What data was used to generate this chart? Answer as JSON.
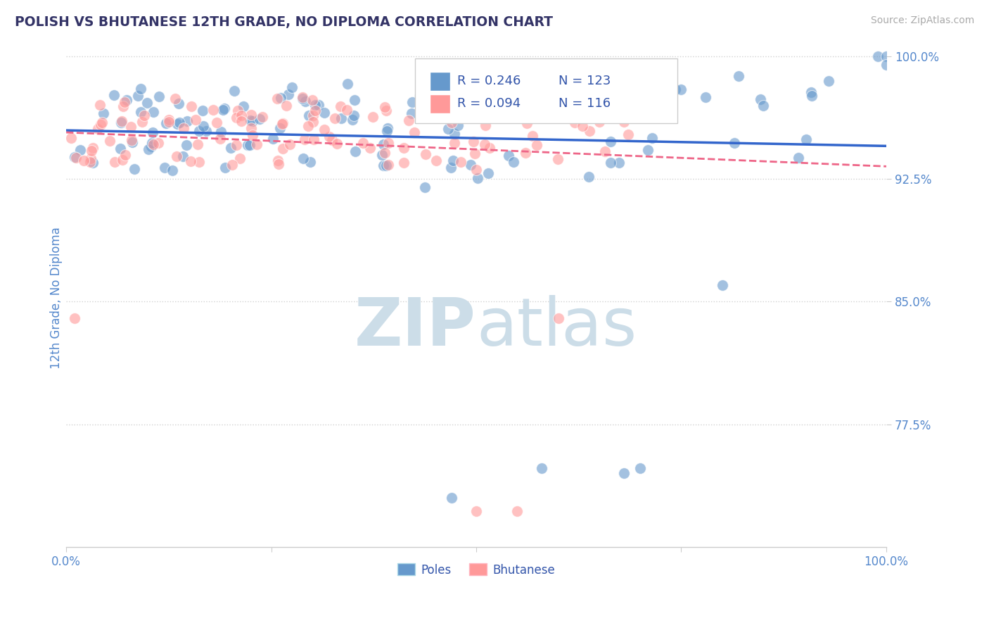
{
  "title": "POLISH VS BHUTANESE 12TH GRADE, NO DIPLOMA CORRELATION CHART",
  "source_text": "Source: ZipAtlas.com",
  "ylabel": "12th Grade, No Diploma",
  "xlim": [
    0.0,
    1.0
  ],
  "ylim": [
    0.7,
    1.005
  ],
  "yticks": [
    0.775,
    0.85,
    0.925,
    1.0
  ],
  "ytick_labels": [
    "77.5%",
    "85.0%",
    "92.5%",
    "100.0%"
  ],
  "blue_R": 0.246,
  "blue_N": 123,
  "pink_R": 0.094,
  "pink_N": 116,
  "blue_color": "#6699CC",
  "pink_color": "#FF9999",
  "blue_label": "Poles",
  "pink_label": "Bhutanese",
  "title_color": "#333366",
  "tick_color": "#5588CC",
  "grid_color": "#CCCCCC",
  "watermark_color": "#CCDDE8",
  "background_color": "#FFFFFF",
  "legend_text_color": "#3355AA",
  "blue_line_color": "#3366CC",
  "pink_line_color": "#EE6688",
  "source_color": "#AAAAAA"
}
